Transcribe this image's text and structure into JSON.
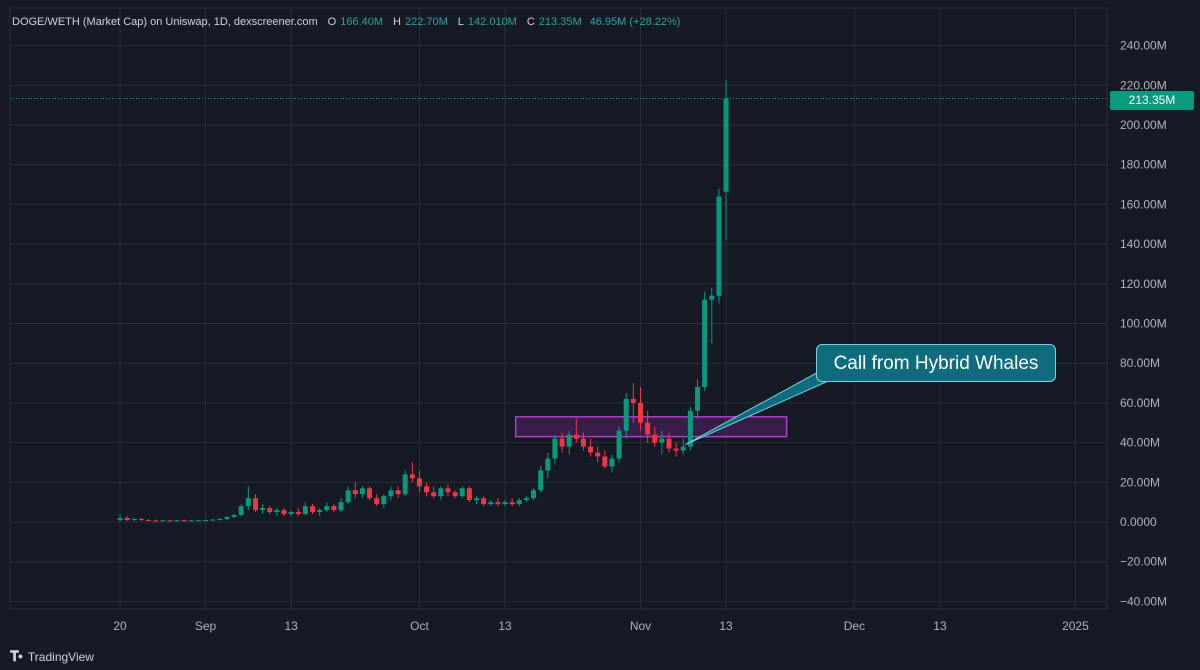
{
  "legend": {
    "title": "DOGE/WETH (Market Cap) on Uniswap, 1D, dexscreener.com",
    "o_label": "O",
    "o_value": "166.40M",
    "h_label": "H",
    "h_value": "222.70M",
    "l_label": "L",
    "l_value": "142.010M",
    "c_label": "C",
    "c_value": "213.35M",
    "change": "46.95M (+28.22%)"
  },
  "last_price_label": "213.35M",
  "annotation": {
    "text": "Call from Hybrid Whales"
  },
  "branding": {
    "text": "TradingView"
  },
  "colors": {
    "up": "#089981",
    "down": "#f23645",
    "background": "#161a25",
    "grid": "#2a2e39",
    "zone": "#9c27b0"
  },
  "chart_data": {
    "type": "candlestick",
    "yaxis_ticks": [
      "240.00M",
      "220.00M",
      "200.00M",
      "180.00M",
      "160.00M",
      "140.00M",
      "120.00M",
      "100.00M",
      "80.00M",
      "60.00M",
      "40.00M",
      "20.00M",
      "0.0000",
      "−20.00M",
      "−40.00M"
    ],
    "yaxis_values": [
      240,
      220,
      200,
      180,
      160,
      140,
      120,
      100,
      80,
      60,
      40,
      20,
      0,
      -20,
      -40
    ],
    "ylim": [
      -44,
      248
    ],
    "xaxis_ticks": [
      {
        "label": "20",
        "day": 0
      },
      {
        "label": "Sep",
        "day": 12
      },
      {
        "label": "13",
        "day": 24
      },
      {
        "label": "Oct",
        "day": 42
      },
      {
        "label": "13",
        "day": 54
      },
      {
        "label": "Nov",
        "day": 73
      },
      {
        "label": "13",
        "day": 85
      },
      {
        "label": "Dec",
        "day": 103
      },
      {
        "label": "13",
        "day": 115
      },
      {
        "label": "2025",
        "day": 134
      }
    ],
    "x_range_days": [
      -7.5,
      135.5
    ],
    "support_zone": {
      "day_start": 55.5,
      "day_end": 93.5,
      "low": 43,
      "high": 53
    },
    "candles": [
      {
        "d": 0,
        "o": 1,
        "h": 4,
        "l": 0,
        "c": 2
      },
      {
        "d": 1,
        "o": 2,
        "h": 3,
        "l": 0.5,
        "c": 1
      },
      {
        "d": 2,
        "o": 1,
        "h": 2,
        "l": 0.5,
        "c": 1.5
      },
      {
        "d": 3,
        "o": 1.5,
        "h": 2,
        "l": 0.5,
        "c": 1
      },
      {
        "d": 4,
        "o": 1,
        "h": 1.5,
        "l": 0.5,
        "c": 0.8
      },
      {
        "d": 5,
        "o": 0.8,
        "h": 1.2,
        "l": 0.3,
        "c": 0.6
      },
      {
        "d": 6,
        "o": 0.6,
        "h": 1,
        "l": 0.3,
        "c": 0.8
      },
      {
        "d": 7,
        "o": 0.8,
        "h": 1.1,
        "l": 0.4,
        "c": 0.6
      },
      {
        "d": 8,
        "o": 0.6,
        "h": 1,
        "l": 0.3,
        "c": 0.9
      },
      {
        "d": 9,
        "o": 0.9,
        "h": 1.2,
        "l": 0.5,
        "c": 0.7
      },
      {
        "d": 10,
        "o": 0.7,
        "h": 1,
        "l": 0.4,
        "c": 0.8
      },
      {
        "d": 11,
        "o": 0.8,
        "h": 1.1,
        "l": 0.5,
        "c": 0.9
      },
      {
        "d": 12,
        "o": 0.9,
        "h": 1.2,
        "l": 0.5,
        "c": 1
      },
      {
        "d": 13,
        "o": 1,
        "h": 1.5,
        "l": 0.6,
        "c": 1.2
      },
      {
        "d": 14,
        "o": 1.2,
        "h": 2,
        "l": 0.8,
        "c": 1.5
      },
      {
        "d": 15,
        "o": 1.5,
        "h": 3,
        "l": 1,
        "c": 2.5
      },
      {
        "d": 16,
        "o": 2.5,
        "h": 4,
        "l": 2,
        "c": 3.5
      },
      {
        "d": 17,
        "o": 3.5,
        "h": 9,
        "l": 3,
        "c": 8
      },
      {
        "d": 18,
        "o": 8,
        "h": 18,
        "l": 6,
        "c": 12
      },
      {
        "d": 19,
        "o": 12,
        "h": 14,
        "l": 5,
        "c": 6
      },
      {
        "d": 20,
        "o": 6,
        "h": 9,
        "l": 4,
        "c": 7
      },
      {
        "d": 21,
        "o": 7,
        "h": 8,
        "l": 4,
        "c": 5
      },
      {
        "d": 22,
        "o": 5,
        "h": 7,
        "l": 3,
        "c": 6
      },
      {
        "d": 23,
        "o": 6,
        "h": 7,
        "l": 3,
        "c": 4
      },
      {
        "d": 24,
        "o": 4,
        "h": 6,
        "l": 3,
        "c": 5
      },
      {
        "d": 25,
        "o": 5,
        "h": 7,
        "l": 3,
        "c": 4
      },
      {
        "d": 26,
        "o": 4,
        "h": 10,
        "l": 3.5,
        "c": 8
      },
      {
        "d": 27,
        "o": 8,
        "h": 9,
        "l": 4,
        "c": 5
      },
      {
        "d": 28,
        "o": 5,
        "h": 7,
        "l": 3,
        "c": 6
      },
      {
        "d": 29,
        "o": 6,
        "h": 10,
        "l": 5,
        "c": 8
      },
      {
        "d": 30,
        "o": 8,
        "h": 9,
        "l": 5,
        "c": 6
      },
      {
        "d": 31,
        "o": 6,
        "h": 12,
        "l": 5,
        "c": 10
      },
      {
        "d": 32,
        "o": 10,
        "h": 18,
        "l": 9,
        "c": 16
      },
      {
        "d": 33,
        "o": 16,
        "h": 20,
        "l": 12,
        "c": 14
      },
      {
        "d": 34,
        "o": 14,
        "h": 18,
        "l": 12,
        "c": 17
      },
      {
        "d": 35,
        "o": 17,
        "h": 18,
        "l": 11,
        "c": 12
      },
      {
        "d": 36,
        "o": 12,
        "h": 14,
        "l": 8,
        "c": 9
      },
      {
        "d": 37,
        "o": 9,
        "h": 14,
        "l": 7,
        "c": 13
      },
      {
        "d": 38,
        "o": 13,
        "h": 18,
        "l": 11,
        "c": 16
      },
      {
        "d": 39,
        "o": 16,
        "h": 18,
        "l": 12,
        "c": 14
      },
      {
        "d": 40,
        "o": 14,
        "h": 26,
        "l": 13,
        "c": 24
      },
      {
        "d": 41,
        "o": 24,
        "h": 30,
        "l": 20,
        "c": 22
      },
      {
        "d": 42,
        "o": 22,
        "h": 26,
        "l": 15,
        "c": 18
      },
      {
        "d": 43,
        "o": 18,
        "h": 20,
        "l": 13,
        "c": 15
      },
      {
        "d": 44,
        "o": 15,
        "h": 18,
        "l": 12,
        "c": 13
      },
      {
        "d": 45,
        "o": 13,
        "h": 18,
        "l": 11,
        "c": 17
      },
      {
        "d": 46,
        "o": 17,
        "h": 19,
        "l": 13,
        "c": 15
      },
      {
        "d": 47,
        "o": 15,
        "h": 16,
        "l": 12,
        "c": 13
      },
      {
        "d": 48,
        "o": 13,
        "h": 18,
        "l": 12,
        "c": 17
      },
      {
        "d": 49,
        "o": 17,
        "h": 18,
        "l": 10,
        "c": 11
      },
      {
        "d": 50,
        "o": 11,
        "h": 13,
        "l": 9,
        "c": 12
      },
      {
        "d": 51,
        "o": 12,
        "h": 13,
        "l": 8,
        "c": 9
      },
      {
        "d": 52,
        "o": 9,
        "h": 11,
        "l": 8,
        "c": 10
      },
      {
        "d": 53,
        "o": 10,
        "h": 12,
        "l": 8,
        "c": 9
      },
      {
        "d": 54,
        "o": 9,
        "h": 11,
        "l": 8,
        "c": 10
      },
      {
        "d": 55,
        "o": 10,
        "h": 12,
        "l": 8,
        "c": 9
      },
      {
        "d": 56,
        "o": 9,
        "h": 12,
        "l": 8,
        "c": 11
      },
      {
        "d": 57,
        "o": 11,
        "h": 13,
        "l": 10,
        "c": 12
      },
      {
        "d": 58,
        "o": 12,
        "h": 17,
        "l": 11,
        "c": 16
      },
      {
        "d": 59,
        "o": 16,
        "h": 28,
        "l": 15,
        "c": 26
      },
      {
        "d": 60,
        "o": 26,
        "h": 35,
        "l": 22,
        "c": 32
      },
      {
        "d": 61,
        "o": 32,
        "h": 44,
        "l": 29,
        "c": 42
      },
      {
        "d": 62,
        "o": 42,
        "h": 45,
        "l": 35,
        "c": 38
      },
      {
        "d": 63,
        "o": 38,
        "h": 46,
        "l": 34,
        "c": 44
      },
      {
        "d": 64,
        "o": 44,
        "h": 52,
        "l": 40,
        "c": 42
      },
      {
        "d": 65,
        "o": 42,
        "h": 45,
        "l": 36,
        "c": 38
      },
      {
        "d": 66,
        "o": 38,
        "h": 42,
        "l": 33,
        "c": 35
      },
      {
        "d": 67,
        "o": 35,
        "h": 38,
        "l": 30,
        "c": 33
      },
      {
        "d": 68,
        "o": 33,
        "h": 36,
        "l": 27,
        "c": 28
      },
      {
        "d": 69,
        "o": 28,
        "h": 34,
        "l": 25,
        "c": 32
      },
      {
        "d": 70,
        "o": 32,
        "h": 48,
        "l": 30,
        "c": 46
      },
      {
        "d": 71,
        "o": 46,
        "h": 65,
        "l": 42,
        "c": 62
      },
      {
        "d": 72,
        "o": 62,
        "h": 70,
        "l": 50,
        "c": 60
      },
      {
        "d": 73,
        "o": 60,
        "h": 68,
        "l": 46,
        "c": 50
      },
      {
        "d": 74,
        "o": 50,
        "h": 56,
        "l": 40,
        "c": 44
      },
      {
        "d": 75,
        "o": 44,
        "h": 48,
        "l": 38,
        "c": 40
      },
      {
        "d": 76,
        "o": 40,
        "h": 46,
        "l": 34,
        "c": 42
      },
      {
        "d": 77,
        "o": 42,
        "h": 45,
        "l": 35,
        "c": 37
      },
      {
        "d": 78,
        "o": 37,
        "h": 40,
        "l": 33,
        "c": 36
      },
      {
        "d": 79,
        "o": 36,
        "h": 42,
        "l": 34,
        "c": 38
      },
      {
        "d": 80,
        "o": 38,
        "h": 58,
        "l": 36,
        "c": 56
      },
      {
        "d": 81,
        "o": 56,
        "h": 72,
        "l": 52,
        "c": 68
      },
      {
        "d": 82,
        "o": 68,
        "h": 116,
        "l": 66,
        "c": 112
      },
      {
        "d": 83,
        "o": 112,
        "h": 118,
        "l": 90,
        "c": 114
      },
      {
        "d": 84,
        "o": 114,
        "h": 168,
        "l": 110,
        "c": 164
      },
      {
        "d": 85,
        "o": 166.4,
        "h": 222.7,
        "l": 142.01,
        "c": 213.35
      }
    ]
  }
}
